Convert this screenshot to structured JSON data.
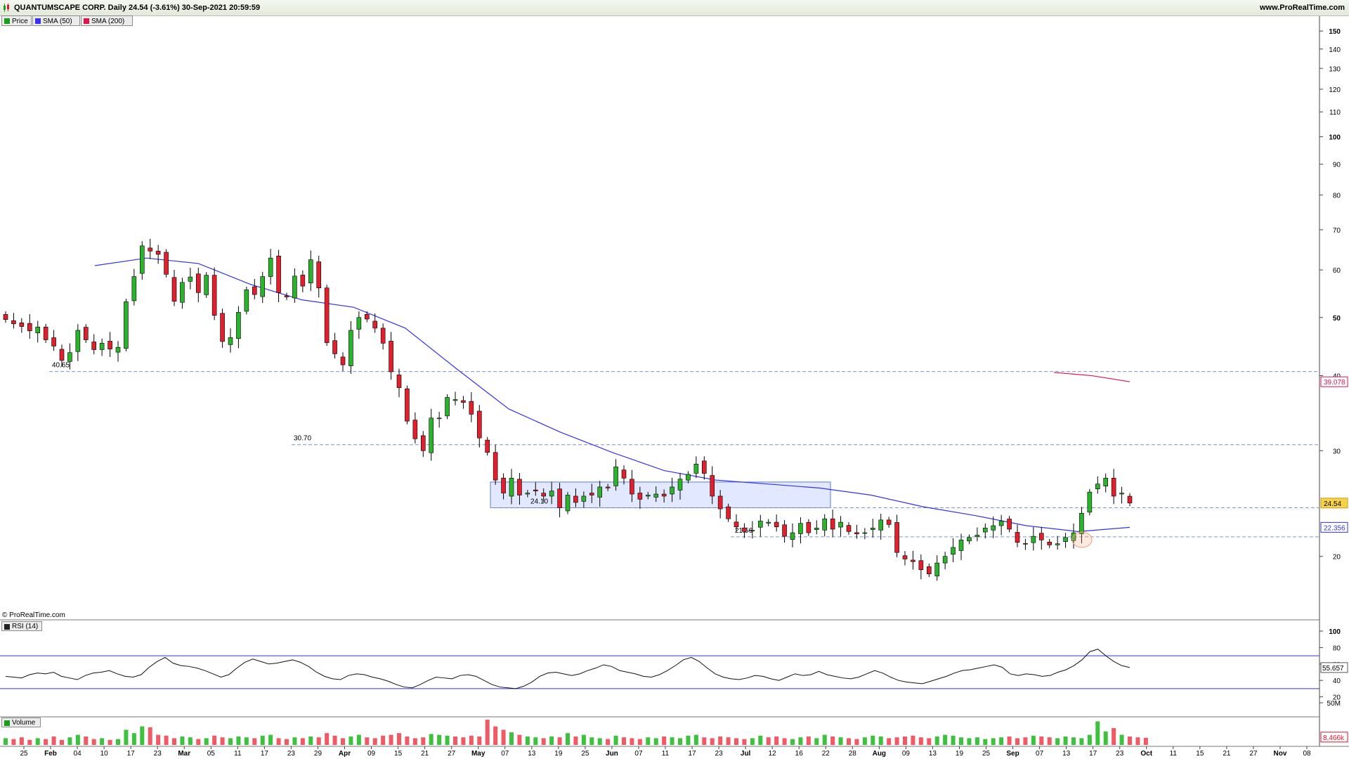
{
  "window": {
    "title": "QUANTUMSCAPE CORP. Daily 24.54 (-3.61%) 30-Sep-2021 20:59:59",
    "url": "www.ProRealTime.com",
    "copyright": "© ProRealTime.com"
  },
  "legend": [
    {
      "label": "Price",
      "color": "#1a9e1a"
    },
    {
      "label": "SMA (50)",
      "color": "#3333ee"
    },
    {
      "label": "SMA (200)",
      "color": "#e0144c"
    }
  ],
  "panels": {
    "rsi_label": "RSI (14)",
    "volume_label": "Volume"
  },
  "chart_data": {
    "type": "candlestick",
    "scale": "log",
    "ylim": [
      17,
      155
    ],
    "y_ticks": [
      "150",
      "140",
      "130",
      "120",
      "110",
      "100",
      "90",
      "80",
      "70",
      "60",
      "50",
      "40",
      "30",
      "20"
    ],
    "x_ticks": [
      "25",
      "Feb",
      "04",
      "10",
      "17",
      "23",
      "Mar",
      "05",
      "11",
      "17",
      "23",
      "29",
      "Apr",
      "09",
      "15",
      "21",
      "27",
      "May",
      "07",
      "13",
      "19",
      "25",
      "Jun",
      "07",
      "11",
      "17",
      "23",
      "Jul",
      "12",
      "16",
      "22",
      "28",
      "Aug",
      "09",
      "13",
      "19",
      "25",
      "Sep",
      "07",
      "13",
      "17",
      "23",
      "Oct",
      "11",
      "15",
      "21",
      "27",
      "Nov",
      "08"
    ],
    "x_bold": [
      "Feb",
      "Mar",
      "Apr",
      "May",
      "Jun",
      "Jul",
      "Aug",
      "Sep",
      "Oct",
      "Nov"
    ],
    "candle_closes": [
      49.6,
      48.8,
      48.3,
      47.5,
      48.2,
      45.9,
      44.8,
      42.4,
      43.7,
      47.6,
      45.9,
      44.2,
      45.3,
      44.3,
      44.6,
      53.1,
      58.5,
      65.8,
      64.5,
      63.7,
      59.0,
      53.2,
      57.2,
      58.4,
      55.0,
      58.8,
      50.4,
      45.6,
      46.3,
      51.0,
      55.6,
      54.6,
      58.5,
      62.8,
      55.0,
      54.1,
      58.6,
      56.4,
      62.4,
      56.0,
      45.4,
      43.5,
      41.7,
      47.6,
      50.0,
      49.7,
      48.0,
      45.3,
      40.6,
      38.2,
      33.6,
      31.4,
      30.0,
      34.0,
      34.0,
      36.8,
      36.5,
      36.1,
      34.5,
      31.5,
      29.8,
      26.8,
      25.5,
      27.0,
      25.3,
      25.5,
      25.7,
      25.2,
      25.7,
      24.1,
      25.3,
      24.6,
      25.2,
      25.3,
      26.1,
      26.0,
      28.2,
      27.0,
      25.4,
      24.9,
      25.3,
      25.4,
      25.2,
      26.1,
      26.9,
      27.4,
      28.5,
      27.5,
      25.2,
      24.0,
      23.1,
      22.4,
      22.0,
      22.1,
      22.9,
      22.8,
      22.4,
      21.6,
      21.9,
      22.7,
      21.9,
      22.3,
      23.1,
      22.2,
      22.8,
      22.0,
      21.8,
      21.9,
      22.3,
      23.0,
      22.6,
      20.3,
      19.8,
      19.6,
      19.0,
      18.7,
      19.5,
      20.0,
      20.7,
      21.3,
      21.5,
      21.7,
      22.3,
      22.5,
      22.9,
      22.2,
      21.1,
      21.0,
      21.6,
      21.3,
      20.9,
      21.0,
      21.5,
      21.9,
      23.6,
      25.6,
      26.4,
      27.0,
      25.2,
      25.5,
      24.54
    ],
    "candles_first_date": "2021-01-21",
    "sma50": {
      "label": "22.356",
      "points": [
        [
          0.0,
          61.0
        ],
        [
          0.05,
          62.8
        ],
        [
          0.1,
          61.5
        ],
        [
          0.15,
          56.8
        ],
        [
          0.2,
          53.5
        ],
        [
          0.25,
          52.0
        ],
        [
          0.3,
          48.0
        ],
        [
          0.35,
          41.0
        ],
        [
          0.4,
          35.2
        ],
        [
          0.45,
          32.2
        ],
        [
          0.5,
          29.8
        ],
        [
          0.55,
          27.8
        ],
        [
          0.6,
          26.8
        ],
        [
          0.65,
          26.4
        ],
        [
          0.7,
          26.0
        ],
        [
          0.75,
          25.3
        ],
        [
          0.8,
          24.2
        ],
        [
          0.85,
          23.4
        ],
        [
          0.9,
          22.5
        ],
        [
          0.95,
          22.0
        ],
        [
          1.0,
          22.356
        ]
      ]
    },
    "sma200": {
      "label": "39.078",
      "points": [
        [
          0.0,
          40.5
        ],
        [
          0.5,
          40.0
        ],
        [
          1.0,
          39.078
        ]
      ]
    },
    "horizontal_levels": [
      {
        "value": 40.65,
        "label": "40.65"
      },
      {
        "value": 30.7,
        "label": "30.70"
      },
      {
        "value": 24.1,
        "label": "24.10"
      },
      {
        "value": 21.56,
        "label": "21.56"
      }
    ],
    "zone": {
      "low": 24.1,
      "high": 26.6
    },
    "last_price": {
      "value": 24.54,
      "label": "24.54"
    },
    "rsi": {
      "value": 55.657,
      "label": "55.657",
      "levels": [
        70,
        30
      ],
      "ticks": [
        "100",
        "80",
        "60",
        "40",
        "20"
      ],
      "values": [
        45,
        44,
        43,
        47,
        49,
        48,
        50,
        45,
        43,
        41,
        46,
        49,
        50,
        52,
        48,
        45,
        44,
        47,
        56,
        63,
        68,
        61,
        58,
        57,
        55,
        52,
        48,
        44,
        47,
        55,
        62,
        66,
        63,
        60,
        61,
        63,
        65,
        62,
        57,
        50,
        45,
        42,
        41,
        46,
        48,
        47,
        44,
        42,
        39,
        35,
        32,
        31,
        35,
        40,
        44,
        43,
        42,
        46,
        47,
        45,
        40,
        35,
        32,
        31,
        30,
        33,
        38,
        45,
        49,
        50,
        48,
        46,
        48,
        52,
        55,
        59,
        57,
        52,
        50,
        48,
        45,
        44,
        47,
        52,
        58,
        65,
        68,
        63,
        55,
        48,
        44,
        42,
        41,
        43,
        46,
        45,
        42,
        40,
        44,
        48,
        46,
        47,
        51,
        47,
        45,
        43,
        42,
        44,
        48,
        52,
        49,
        44,
        40,
        38,
        37,
        36,
        39,
        42,
        45,
        49,
        52,
        53,
        55,
        57,
        59,
        56,
        48,
        46,
        48,
        47,
        45,
        46,
        50,
        53,
        58,
        65,
        75,
        78,
        70,
        63,
        58,
        55.657
      ]
    },
    "volume": {
      "label": "8,466k",
      "tick": "50M",
      "values": [
        8,
        7,
        9,
        6,
        8,
        7,
        10,
        6,
        9,
        12,
        10,
        7,
        8,
        6,
        7,
        18,
        14,
        22,
        21,
        12,
        11,
        8,
        10,
        9,
        7,
        8,
        11,
        9,
        8,
        10,
        9,
        8,
        11,
        12,
        8,
        7,
        9,
        8,
        10,
        9,
        14,
        11,
        8,
        10,
        12,
        9,
        8,
        11,
        12,
        14,
        10,
        8,
        9,
        13,
        12,
        11,
        10,
        9,
        11,
        10,
        30,
        22,
        18,
        15,
        12,
        10,
        9,
        8,
        10,
        9,
        14,
        10,
        12,
        9,
        8,
        7,
        11,
        9,
        8,
        7,
        9,
        8,
        10,
        9,
        8,
        11,
        12,
        9,
        8,
        10,
        9,
        8,
        7,
        8,
        11,
        9,
        10,
        8,
        7,
        9,
        10,
        8,
        12,
        10,
        9,
        8,
        7,
        9,
        11,
        10,
        8,
        9,
        10,
        11,
        9,
        8,
        10,
        12,
        11,
        9,
        8,
        9,
        7,
        8,
        9,
        10,
        8,
        9,
        11,
        10,
        9,
        8,
        10,
        9,
        8,
        12,
        28,
        16,
        20,
        12,
        10,
        9,
        8.466
      ]
    }
  }
}
